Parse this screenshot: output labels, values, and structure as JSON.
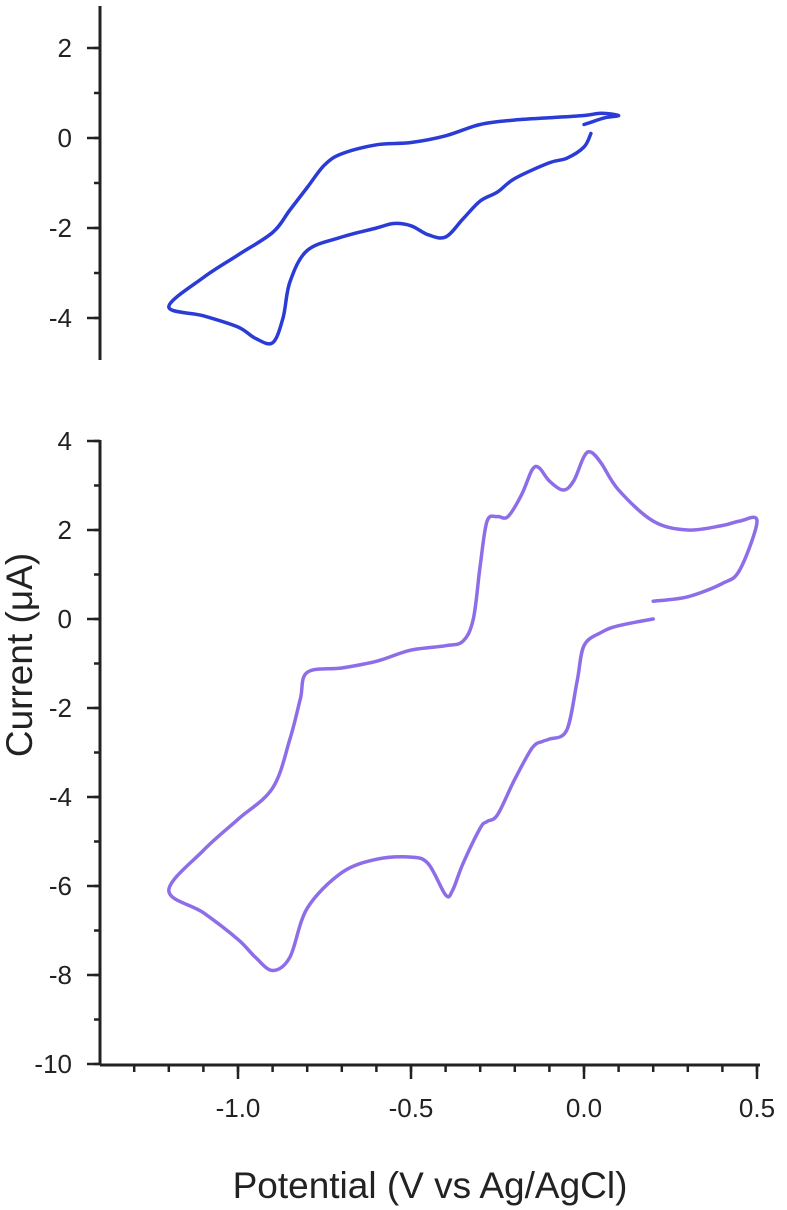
{
  "chart_data": [
    {
      "type": "line",
      "panel": "top",
      "title": "",
      "xlabel": "",
      "ylabel": "",
      "xlim": [
        -1.2,
        0.1
      ],
      "ylim": [
        -5,
        3
      ],
      "yticks": [
        {
          "value": 2,
          "label": "2"
        },
        {
          "value": 0,
          "label": "0"
        },
        {
          "value": -2,
          "label": "-2"
        },
        {
          "value": -4,
          "label": "-4"
        }
      ],
      "series": [
        {
          "color": "#2b3bd6",
          "x": [
            0.0,
            0.02,
            0.06,
            0.1,
            0.05,
            0.0,
            -0.1,
            -0.2,
            -0.3,
            -0.4,
            -0.5,
            -0.6,
            -0.7,
            -0.75,
            -0.8,
            -0.85,
            -0.9,
            -1.0,
            -1.1,
            -1.2,
            -1.1,
            -1.0,
            -0.95,
            -0.9,
            -0.87,
            -0.85,
            -0.8,
            -0.7,
            -0.6,
            -0.55,
            -0.5,
            -0.45,
            -0.4,
            -0.35,
            -0.3,
            -0.25,
            -0.2,
            -0.1,
            -0.05,
            0.0,
            0.02
          ],
          "y": [
            0.3,
            0.35,
            0.45,
            0.5,
            0.55,
            0.5,
            0.45,
            0.4,
            0.3,
            0.05,
            -0.1,
            -0.15,
            -0.35,
            -0.6,
            -1.1,
            -1.6,
            -2.1,
            -2.6,
            -3.1,
            -3.75,
            -3.95,
            -4.2,
            -4.45,
            -4.55,
            -4.0,
            -3.2,
            -2.5,
            -2.2,
            -2.0,
            -1.9,
            -1.95,
            -2.15,
            -2.2,
            -1.8,
            -1.4,
            -1.2,
            -0.9,
            -0.55,
            -0.45,
            -0.2,
            0.1
          ]
        }
      ]
    },
    {
      "type": "line",
      "panel": "bottom",
      "title": "",
      "xlabel": "Potential (V vs Ag/AgCl)",
      "ylabel": "Current (μA)",
      "xlim": [
        -1.3,
        0.5
      ],
      "ylim": [
        -10,
        4
      ],
      "xticks": [
        {
          "value": -1.0,
          "label": "-1.0"
        },
        {
          "value": -0.5,
          "label": "-0.5"
        },
        {
          "value": 0.0,
          "label": "0.0"
        },
        {
          "value": 0.5,
          "label": "0.5"
        }
      ],
      "yticks": [
        {
          "value": 4,
          "label": "4"
        },
        {
          "value": 2,
          "label": "2"
        },
        {
          "value": 0,
          "label": "0"
        },
        {
          "value": -2,
          "label": "-2"
        },
        {
          "value": -4,
          "label": "-4"
        },
        {
          "value": -6,
          "label": "-6"
        },
        {
          "value": -8,
          "label": "-8"
        },
        {
          "value": -10,
          "label": "-10"
        }
      ],
      "series": [
        {
          "color": "#8d6ee8",
          "x": [
            0.2,
            0.3,
            0.4,
            0.45,
            0.5,
            0.45,
            0.4,
            0.3,
            0.2,
            0.1,
            0.05,
            0.02,
            0.0,
            -0.03,
            -0.06,
            -0.1,
            -0.13,
            -0.15,
            -0.18,
            -0.22,
            -0.25,
            -0.28,
            -0.3,
            -0.32,
            -0.35,
            -0.4,
            -0.5,
            -0.6,
            -0.7,
            -0.8,
            -0.82,
            -0.85,
            -0.9,
            -1.0,
            -1.1,
            -1.2,
            -1.1,
            -1.0,
            -0.95,
            -0.9,
            -0.85,
            -0.8,
            -0.7,
            -0.6,
            -0.5,
            -0.45,
            -0.4,
            -0.38,
            -0.35,
            -0.3,
            -0.28,
            -0.25,
            -0.2,
            -0.15,
            -0.12,
            -0.1,
            -0.05,
            -0.02,
            0.0,
            0.05,
            0.1,
            0.2
          ],
          "y": [
            0.4,
            0.5,
            0.8,
            1.1,
            2.2,
            2.2,
            2.1,
            2.0,
            2.2,
            2.9,
            3.5,
            3.75,
            3.65,
            3.1,
            2.9,
            3.1,
            3.4,
            3.35,
            2.8,
            2.3,
            2.3,
            2.2,
            1.2,
            0.0,
            -0.5,
            -0.6,
            -0.7,
            -0.95,
            -1.1,
            -1.2,
            -1.8,
            -2.7,
            -3.8,
            -4.5,
            -5.2,
            -6.1,
            -6.6,
            -7.2,
            -7.6,
            -7.9,
            -7.6,
            -6.5,
            -5.7,
            -5.4,
            -5.35,
            -5.5,
            -6.2,
            -6.1,
            -5.5,
            -4.7,
            -4.55,
            -4.4,
            -3.6,
            -2.9,
            -2.75,
            -2.7,
            -2.5,
            -1.4,
            -0.6,
            -0.3,
            -0.15,
            0.0
          ]
        }
      ]
    }
  ]
}
